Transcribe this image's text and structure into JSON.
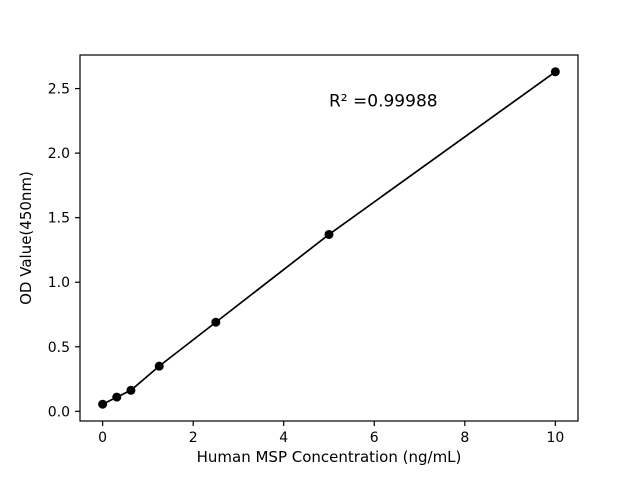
{
  "chart_data": {
    "type": "scatter",
    "title": "",
    "xlabel": "Human MSP Concentration (ng/mL)",
    "ylabel": "OD Value(450nm)",
    "x": [
      0,
      0.3125,
      0.625,
      1.25,
      2.5,
      5,
      10
    ],
    "y": [
      0.055,
      0.11,
      0.163,
      0.35,
      0.69,
      1.37,
      2.63
    ],
    "line_through_points": true,
    "annotation": {
      "text": "R² =0.99988",
      "x": 5.0,
      "y": 2.36
    },
    "x_ticks": {
      "values": [
        0,
        2,
        4,
        6,
        8,
        10
      ],
      "labels": [
        "0",
        "2",
        "4",
        "6",
        "8",
        "10"
      ]
    },
    "y_ticks": {
      "values": [
        0,
        0.5,
        1.0,
        1.5,
        2.0,
        2.5
      ],
      "labels": [
        "0.0",
        "0.5",
        "1.0",
        "1.5",
        "2.0",
        "2.5"
      ]
    },
    "xlim": [
      -0.5,
      10.5
    ],
    "ylim": [
      -0.075,
      2.76
    ],
    "grid": false,
    "legend": "none",
    "colors": {
      "point": "#000000",
      "line": "#000000",
      "axis": "#000000",
      "background": "#ffffff"
    }
  }
}
